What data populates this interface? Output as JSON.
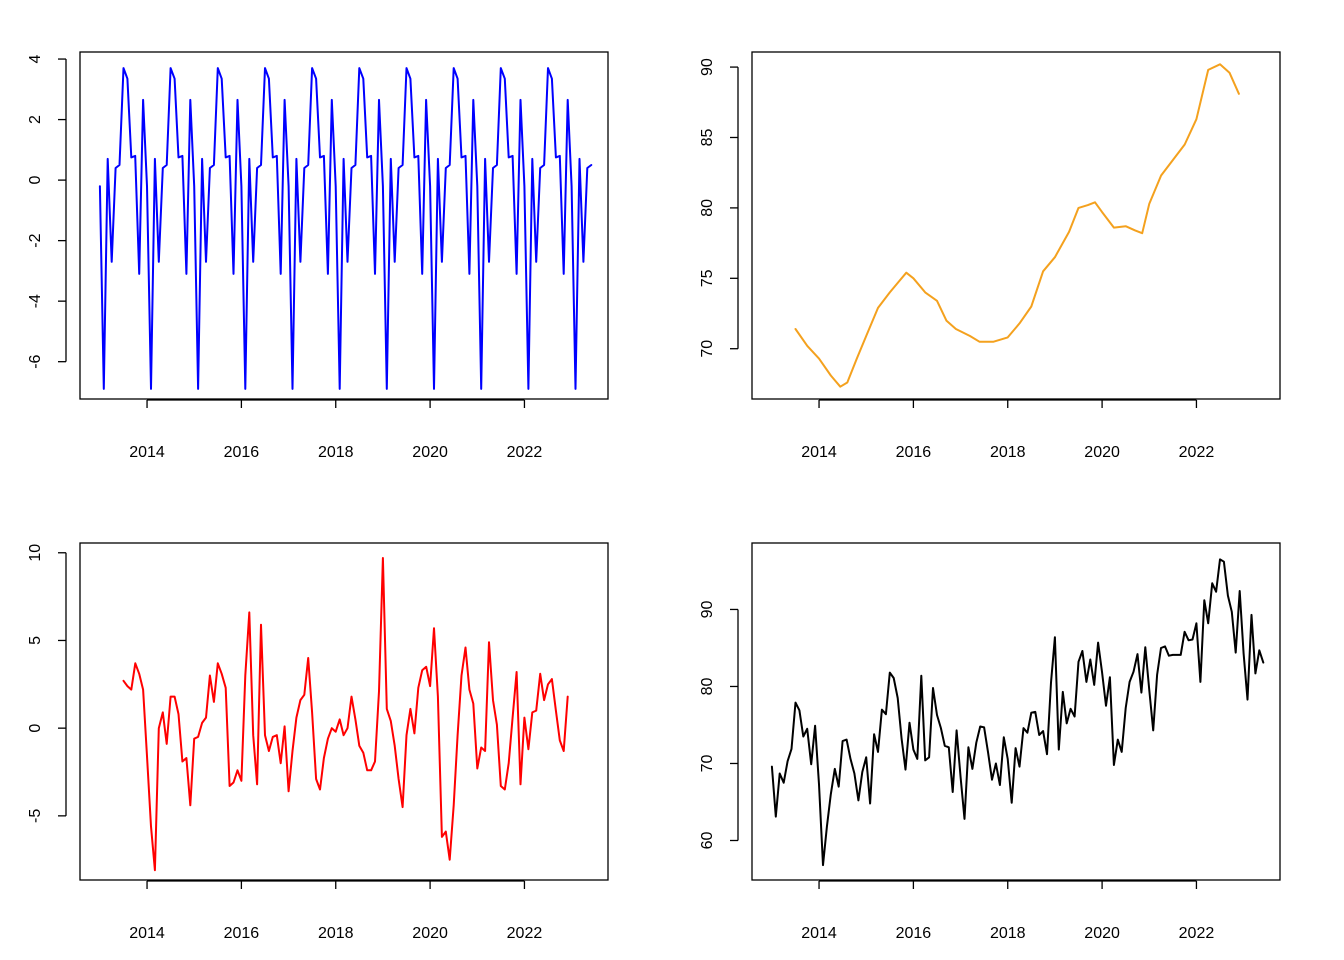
{
  "chart_data": [
    {
      "id": "seasonal",
      "type": "line",
      "color": "#0000FF",
      "xlim": [
        2012.6,
        2023.75
      ],
      "ylim": [
        -7.2,
        4.2
      ],
      "x_ticks": [
        2014,
        2016,
        2018,
        2020,
        2022
      ],
      "x_tick_labels": [
        "2014",
        "2016",
        "2018",
        "2020",
        "2022"
      ],
      "y_ticks": [
        -6,
        -4,
        -2,
        0,
        2,
        4
      ],
      "y_tick_labels": [
        "-6",
        "-4",
        "-2",
        "0",
        "2",
        "4"
      ],
      "x_start": 2013.0,
      "x_step": 0.08333,
      "seasonal_pattern": [
        -0.2,
        -6.9,
        0.7,
        -2.7,
        0.4,
        0.5,
        3.7,
        3.35,
        0.75,
        0.8,
        -3.1,
        2.65
      ],
      "cycles": 10,
      "tail": [
        -0.2,
        -6.9,
        0.7,
        -2.7,
        0.4,
        0.5
      ]
    },
    {
      "id": "trend",
      "type": "line",
      "color": "#F4A11E",
      "xlim": [
        2012.6,
        2023.75
      ],
      "ylim": [
        66.5,
        91.0
      ],
      "x_ticks": [
        2014,
        2016,
        2018,
        2020,
        2022
      ],
      "x_tick_labels": [
        "2014",
        "2016",
        "2018",
        "2020",
        "2022"
      ],
      "y_ticks": [
        70,
        75,
        80,
        85,
        90
      ],
      "y_tick_labels": [
        "70",
        "75",
        "80",
        "85",
        "90"
      ],
      "x": [
        2013.5,
        2013.75,
        2014.0,
        2014.25,
        2014.45,
        2014.6,
        2014.8,
        2015.0,
        2015.25,
        2015.5,
        2015.7,
        2015.85,
        2016.0,
        2016.25,
        2016.5,
        2016.7,
        2016.9,
        2017.2,
        2017.4,
        2017.7,
        2018.0,
        2018.25,
        2018.5,
        2018.75,
        2019.0,
        2019.3,
        2019.5,
        2019.7,
        2019.85,
        2020.0,
        2020.25,
        2020.5,
        2020.7,
        2020.85,
        2021.0,
        2021.25,
        2021.5,
        2021.75,
        2022.0,
        2022.25,
        2022.5,
        2022.7,
        2022.9
      ],
      "y": [
        71.4,
        70.2,
        69.3,
        68.1,
        67.3,
        67.6,
        69.3,
        70.9,
        72.9,
        74.0,
        74.8,
        75.4,
        75.0,
        74.0,
        73.4,
        72.0,
        71.4,
        70.9,
        70.5,
        70.5,
        70.8,
        71.8,
        73.0,
        75.5,
        76.5,
        78.3,
        80.0,
        80.2,
        80.4,
        79.7,
        78.6,
        78.7,
        78.4,
        78.2,
        80.3,
        82.3,
        83.4,
        84.5,
        86.3,
        89.8,
        90.2,
        89.6,
        88.1
      ]
    },
    {
      "id": "remainder",
      "type": "line",
      "color": "#FF0000",
      "xlim": [
        2012.6,
        2023.75
      ],
      "ylim": [
        -8.6,
        10.5
      ],
      "x_ticks": [
        2014,
        2016,
        2018,
        2020,
        2022
      ],
      "x_tick_labels": [
        "2014",
        "2016",
        "2018",
        "2020",
        "2022"
      ],
      "y_ticks": [
        -5,
        0,
        5,
        10
      ],
      "y_tick_labels": [
        "-5",
        "0",
        "5",
        "10"
      ],
      "x_start": 2013.5,
      "x_step": 0.08333,
      "values": [
        2.7,
        2.4,
        2.2,
        3.7,
        3.1,
        2.2,
        -1.6,
        -5.6,
        -8.1,
        0.0,
        0.9,
        -0.9,
        1.8,
        1.8,
        0.8,
        -1.9,
        -1.7,
        -4.4,
        -0.6,
        -0.5,
        0.3,
        0.6,
        3.0,
        1.5,
        3.7,
        3.1,
        2.3,
        -3.3,
        -3.1,
        -2.4,
        -3.0,
        3.0,
        6.6,
        -0.4,
        -3.2,
        5.9,
        -0.4,
        -1.3,
        -0.5,
        -0.4,
        -2.0,
        0.1,
        -3.6,
        -1.3,
        0.6,
        1.6,
        1.9,
        4.0,
        0.9,
        -2.9,
        -3.5,
        -1.7,
        -0.6,
        0.0,
        -0.2,
        0.5,
        -0.4,
        0.0,
        1.8,
        0.5,
        -1.0,
        -1.4,
        -2.4,
        -2.4,
        -1.9,
        2.1,
        9.7,
        1.1,
        0.4,
        -1.0,
        -2.9,
        -4.5,
        -0.4,
        1.1,
        -0.3,
        2.3,
        3.3,
        3.5,
        2.4,
        5.7,
        1.8,
        -6.2,
        -5.9,
        -7.5,
        -4.4,
        -0.4,
        3.0,
        4.6,
        2.2,
        1.4,
        -2.3,
        -1.1,
        -1.3,
        4.9,
        1.6,
        0.2,
        -3.3,
        -3.5,
        -2.0,
        0.6,
        3.2,
        -3.2,
        0.6,
        -1.2,
        0.9,
        1.0,
        3.1,
        1.6,
        2.5,
        2.8,
        1.0,
        -0.7,
        -1.3,
        1.8
      ]
    },
    {
      "id": "observed",
      "type": "line",
      "color": "#000000",
      "xlim": [
        2012.6,
        2023.75
      ],
      "ylim": [
        55.0,
        98.5
      ],
      "x_ticks": [
        2014,
        2016,
        2018,
        2020,
        2022
      ],
      "x_tick_labels": [
        "2014",
        "2016",
        "2018",
        "2020",
        "2022"
      ],
      "y_ticks": [
        60,
        70,
        80,
        90
      ],
      "y_tick_labels": [
        "60",
        "70",
        "80",
        "90"
      ],
      "x_start": 2013.0,
      "x_step": 0.08333,
      "values": [
        69.6,
        63.1,
        68.7,
        67.5,
        70.3,
        71.9,
        77.9,
        76.9,
        73.5,
        74.5,
        69.9,
        74.9,
        67.3,
        56.8,
        61.8,
        66.0,
        69.3,
        67.0,
        72.9,
        73.1,
        70.6,
        68.7,
        65.2,
        68.9,
        70.8,
        64.8,
        73.8,
        71.5,
        77.0,
        76.4,
        81.8,
        81.1,
        78.5,
        73.2,
        69.2,
        75.3,
        71.8,
        70.6,
        81.4,
        70.4,
        70.8,
        79.8,
        76.3,
        74.6,
        72.3,
        72.1,
        66.3,
        74.3,
        68.2,
        62.8,
        72.1,
        69.3,
        72.7,
        74.8,
        74.7,
        71.4,
        67.9,
        70.0,
        67.2,
        73.4,
        70.6,
        64.9,
        72.0,
        69.6,
        74.6,
        74.0,
        76.6,
        76.7,
        73.7,
        74.2,
        71.2,
        80.5,
        86.4,
        71.8,
        79.3,
        75.2,
        77.1,
        76.1,
        83.2,
        84.6,
        80.6,
        83.5,
        80.2,
        85.7,
        81.8,
        77.5,
        81.2,
        69.8,
        73.1,
        71.5,
        77.2,
        80.6,
        81.9,
        84.2,
        79.2,
        85.1,
        79.5,
        74.3,
        81.5,
        85.0,
        85.2,
        84.0,
        84.1,
        84.1,
        84.1,
        87.1,
        86.0,
        86.1,
        88.2,
        80.6,
        91.2,
        88.2,
        93.4,
        92.3,
        96.5,
        96.2,
        91.8,
        89.7,
        84.4,
        92.4,
        84.3,
        78.3,
        89.3,
        81.7,
        84.7,
        83.1
      ]
    }
  ]
}
